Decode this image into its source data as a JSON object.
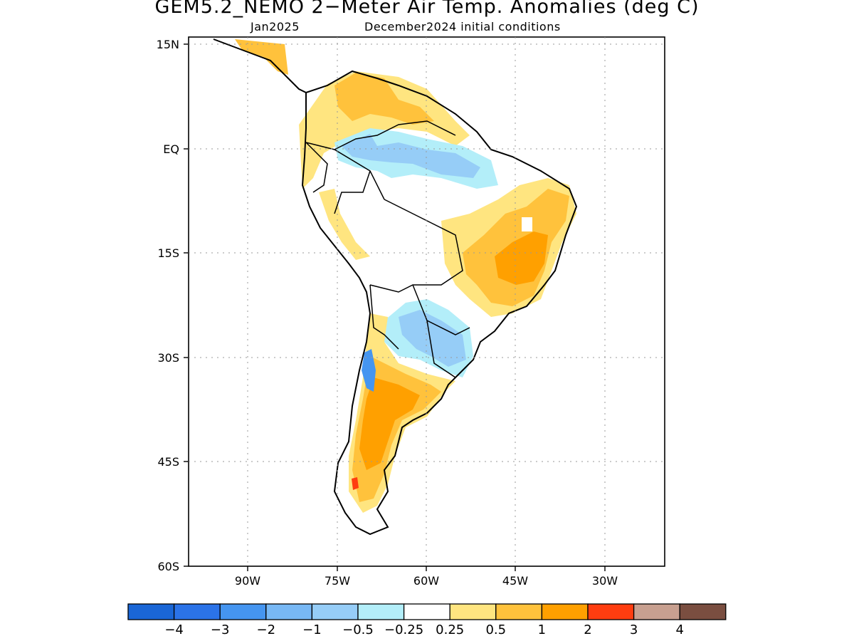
{
  "title": "GEM5.2_NEMO 2−Meter Air Temp. Anomalies (deg C)",
  "subtitle_left": "Jan2025",
  "subtitle_right": "December2024 initial conditions",
  "lat_labels": [
    "15N",
    "EQ",
    "15S",
    "30S",
    "45S",
    "60S"
  ],
  "lon_labels": [
    "90W",
    "75W",
    "60W",
    "45W",
    "30W"
  ],
  "colorbar": {
    "colors": [
      "#1a66d6",
      "#2b73e8",
      "#4595f0",
      "#78b8f5",
      "#96cdf7",
      "#b3eef9",
      "#ffffff",
      "#ffe580",
      "#ffc23c",
      "#ffa000",
      "#ff3d10",
      "#c8a090",
      "#7a4e40"
    ],
    "labels": [
      "−4",
      "−3",
      "−2",
      "−1",
      "−0.5",
      "−0.25",
      "0.25",
      "0.5",
      "1",
      "2",
      "3",
      "4"
    ]
  }
}
